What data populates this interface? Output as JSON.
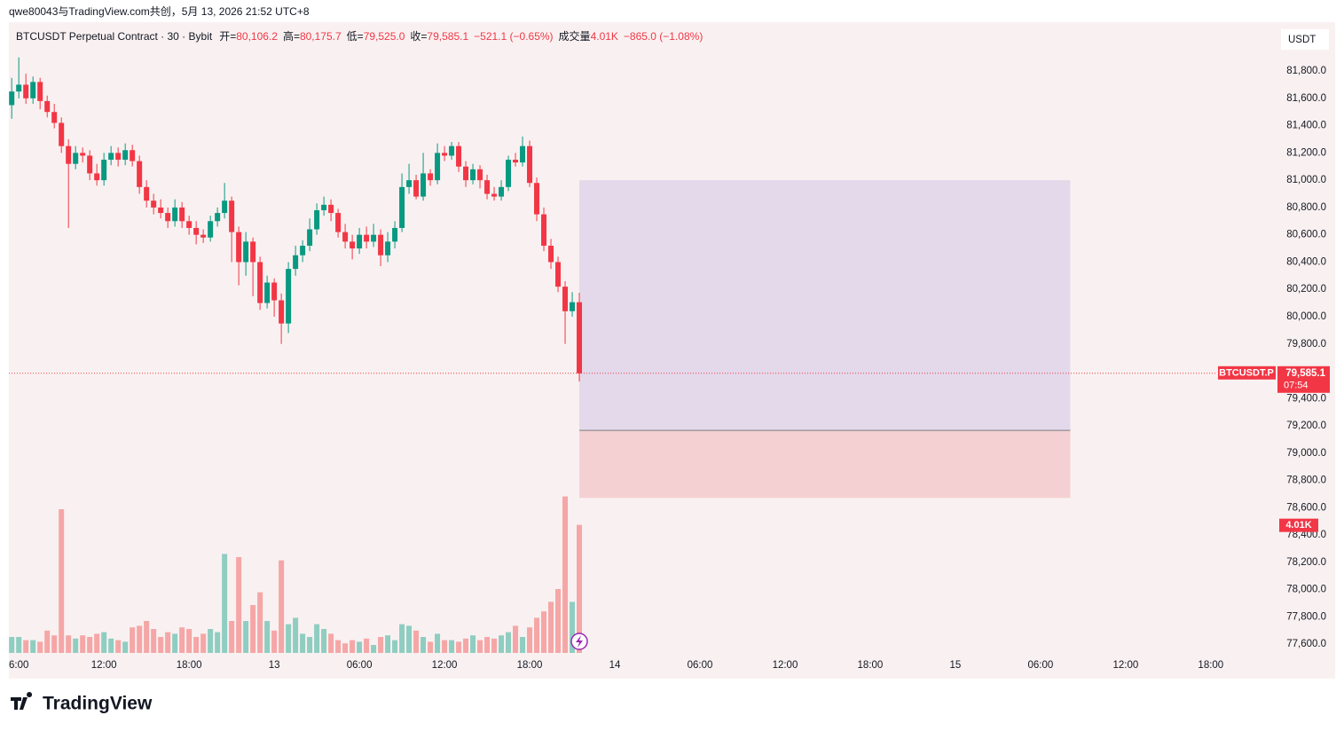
{
  "header": {
    "attribution": "qwe80043与TradingView.com共创，5月 13, 2026 21:52 UTC+8",
    "symbol": "BTCUSDT Perpetual Contract · 30 · Bybit",
    "open_label": "开=",
    "open": "80,106.2",
    "high_label": "高=",
    "high": "80,175.7",
    "low_label": "低=",
    "low": "79,525.0",
    "close_label": "收=",
    "close": "79,585.1",
    "change": "−521.1 (−0.65%)",
    "volume_label": "成交量",
    "volume": "4.01K",
    "volume_change": "−865.0 (−1.08%)"
  },
  "footer": {
    "brand": "TradingView"
  },
  "chart_data": {
    "type": "candlestick",
    "currency": "USDT",
    "up_color": "#089981",
    "down_color": "#f23645",
    "up_volume_color": "#8fcdc1",
    "down_volume_color": "#f5a6a6",
    "xlim": [
      5.3,
      94.7
    ],
    "xticks": [
      {
        "value": 6,
        "label": "6:00"
      },
      {
        "value": 12,
        "label": "12:00"
      },
      {
        "value": 18,
        "label": "18:00"
      },
      {
        "value": 24,
        "label": "13"
      },
      {
        "value": 30,
        "label": "06:00"
      },
      {
        "value": 36,
        "label": "12:00"
      },
      {
        "value": 42,
        "label": "18:00"
      },
      {
        "value": 48,
        "label": "14"
      },
      {
        "value": 54,
        "label": "06:00"
      },
      {
        "value": 60,
        "label": "12:00"
      },
      {
        "value": 66,
        "label": "18:00"
      },
      {
        "value": 72,
        "label": "15"
      },
      {
        "value": 78,
        "label": "06:00"
      },
      {
        "value": 84,
        "label": "12:00"
      },
      {
        "value": 90,
        "label": "18:00"
      }
    ],
    "ylim": [
      77510,
      82158
    ],
    "yticks": [
      {
        "value": 81800,
        "label": "81,800.0"
      },
      {
        "value": 81600,
        "label": "81,600.0"
      },
      {
        "value": 81400,
        "label": "81,400.0"
      },
      {
        "value": 81200,
        "label": "81,200.0"
      },
      {
        "value": 81000,
        "label": "81,000.0"
      },
      {
        "value": 80800,
        "label": "80,800.0"
      },
      {
        "value": 80600,
        "label": "80,600.0"
      },
      {
        "value": 80400,
        "label": "80,400.0"
      },
      {
        "value": 80200,
        "label": "80,200.0"
      },
      {
        "value": 80000,
        "label": "80,000.0"
      },
      {
        "value": 79800,
        "label": "79,800.0"
      },
      {
        "value": 79400,
        "label": "79,400.0"
      },
      {
        "value": 79200,
        "label": "79,200.0"
      },
      {
        "value": 79000,
        "label": "79,000.0"
      },
      {
        "value": 78800,
        "label": "78,800.0"
      },
      {
        "value": 78600,
        "label": "78,600.0"
      },
      {
        "value": 78400,
        "label": "78,400.0"
      },
      {
        "value": 78200,
        "label": "78,200.0"
      },
      {
        "value": 78000,
        "label": "78,000.0"
      },
      {
        "value": 77800,
        "label": "77,800.0"
      },
      {
        "value": 77600,
        "label": "77,600.0"
      }
    ],
    "x": [
      5.5,
      6,
      6.5,
      7,
      7.5,
      8,
      8.5,
      9,
      9.5,
      10,
      10.5,
      11,
      11.5,
      12,
      12.5,
      13,
      13.5,
      14,
      14.5,
      15,
      15.5,
      16,
      16.5,
      17,
      17.5,
      18,
      18.5,
      19,
      19.5,
      20,
      20.5,
      21,
      21.5,
      22,
      22.5,
      23,
      23.5,
      24,
      24.5,
      25,
      25.5,
      26,
      26.5,
      27,
      27.5,
      28,
      28.5,
      29,
      29.5,
      30,
      30.5,
      31,
      31.5,
      32,
      32.5,
      33,
      33.5,
      34,
      34.5,
      35,
      35.5,
      36,
      36.5,
      37,
      37.5,
      38,
      38.5,
      39,
      39.5,
      40,
      40.5,
      41,
      41.5,
      42,
      42.5,
      43,
      43.5,
      44,
      44.5,
      45,
      45.5
    ],
    "candles": [
      [
        81550,
        81750,
        81450,
        81650
      ],
      [
        81650,
        81900,
        81600,
        81700
      ],
      [
        81700,
        81780,
        81560,
        81600
      ],
      [
        81600,
        81760,
        81560,
        81720
      ],
      [
        81720,
        81750,
        81520,
        81580
      ],
      [
        81580,
        81620,
        81460,
        81500
      ],
      [
        81500,
        81560,
        81380,
        81420
      ],
      [
        81420,
        81460,
        81200,
        81250
      ],
      [
        81250,
        81300,
        80650,
        81120
      ],
      [
        81120,
        81250,
        81080,
        81200
      ],
      [
        81200,
        81240,
        81130,
        81180
      ],
      [
        81180,
        81220,
        81000,
        81050
      ],
      [
        81050,
        81120,
        80960,
        81000
      ],
      [
        81000,
        81200,
        80960,
        81150
      ],
      [
        81150,
        81250,
        81110,
        81200
      ],
      [
        81200,
        81240,
        81100,
        81150
      ],
      [
        81150,
        81270,
        81110,
        81220
      ],
      [
        81220,
        81260,
        81100,
        81140
      ],
      [
        81140,
        81180,
        80900,
        80950
      ],
      [
        80950,
        81000,
        80800,
        80850
      ],
      [
        80850,
        80900,
        80750,
        80800
      ],
      [
        80800,
        80860,
        80720,
        80760
      ],
      [
        80760,
        80800,
        80650,
        80700
      ],
      [
        80700,
        80860,
        80660,
        80800
      ],
      [
        80800,
        80840,
        80650,
        80700
      ],
      [
        80700,
        80740,
        80600,
        80650
      ],
      [
        80650,
        80700,
        80530,
        80600
      ],
      [
        80600,
        80640,
        80540,
        80580
      ],
      [
        80580,
        80740,
        80550,
        80700
      ],
      [
        80700,
        80800,
        80660,
        80760
      ],
      [
        80760,
        80980,
        80720,
        80850
      ],
      [
        80850,
        80880,
        80400,
        80620
      ],
      [
        80620,
        80660,
        80230,
        80400
      ],
      [
        80400,
        80620,
        80300,
        80550
      ],
      [
        80550,
        80580,
        80150,
        80400
      ],
      [
        80400,
        80440,
        80050,
        80100
      ],
      [
        80100,
        80300,
        80060,
        80250
      ],
      [
        80250,
        80280,
        80000,
        80120
      ],
      [
        80120,
        80170,
        79800,
        79950
      ],
      [
        79950,
        80400,
        79880,
        80350
      ],
      [
        80350,
        80520,
        80300,
        80450
      ],
      [
        80450,
        80560,
        80400,
        80520
      ],
      [
        80520,
        80720,
        80480,
        80640
      ],
      [
        80640,
        80830,
        80600,
        80780
      ],
      [
        80780,
        80880,
        80740,
        80820
      ],
      [
        80820,
        80860,
        80700,
        80760
      ],
      [
        80760,
        80790,
        80580,
        80620
      ],
      [
        80620,
        80680,
        80500,
        80550
      ],
      [
        80550,
        80600,
        80420,
        80500
      ],
      [
        80500,
        80650,
        80460,
        80600
      ],
      [
        80600,
        80660,
        80500,
        80550
      ],
      [
        80550,
        80680,
        80510,
        80600
      ],
      [
        80600,
        80640,
        80370,
        80450
      ],
      [
        80450,
        80620,
        80400,
        80550
      ],
      [
        80550,
        80700,
        80500,
        80650
      ],
      [
        80650,
        81050,
        80620,
        80950
      ],
      [
        80950,
        81120,
        80900,
        81000
      ],
      [
        81000,
        81040,
        80860,
        80880
      ],
      [
        80880,
        81200,
        80850,
        81050
      ],
      [
        81050,
        81080,
        80960,
        81000
      ],
      [
        81000,
        81270,
        80970,
        81200
      ],
      [
        81200,
        81250,
        81140,
        81180
      ],
      [
        81180,
        81280,
        81150,
        81250
      ],
      [
        81250,
        81280,
        81060,
        81100
      ],
      [
        81100,
        81140,
        80950,
        81000
      ],
      [
        81000,
        81120,
        80970,
        81080
      ],
      [
        81080,
        81110,
        80940,
        81000
      ],
      [
        81000,
        81040,
        80860,
        80900
      ],
      [
        80900,
        80950,
        80850,
        80880
      ],
      [
        80880,
        81000,
        80850,
        80950
      ],
      [
        80950,
        81180,
        80920,
        81150
      ],
      [
        81150,
        81200,
        81100,
        81130
      ],
      [
        81130,
        81320,
        81100,
        81250
      ],
      [
        81250,
        81290,
        80950,
        80980
      ],
      [
        80980,
        81020,
        80700,
        80750
      ],
      [
        80750,
        80800,
        80480,
        80520
      ],
      [
        80520,
        80570,
        80350,
        80400
      ],
      [
        80400,
        80440,
        80180,
        80220
      ],
      [
        80220,
        80260,
        79800,
        80040
      ],
      [
        80040,
        80180,
        80000,
        80106.2
      ],
      [
        80106.2,
        80175.7,
        79525,
        79585.1
      ]
    ],
    "volume_lim": [
      0,
      10
    ],
    "volumes": [
      0.5,
      0.5,
      0.4,
      0.4,
      0.35,
      0.7,
      0.55,
      4.5,
      0.55,
      0.45,
      0.55,
      0.5,
      0.6,
      0.65,
      0.45,
      0.4,
      0.35,
      0.8,
      0.85,
      1.0,
      0.75,
      0.5,
      0.65,
      0.6,
      0.8,
      0.75,
      0.5,
      0.6,
      0.75,
      0.65,
      3.1,
      1.0,
      3.0,
      1.0,
      1.5,
      1.9,
      1.0,
      0.7,
      2.9,
      0.9,
      1.1,
      0.6,
      0.5,
      0.9,
      0.75,
      0.6,
      0.4,
      0.3,
      0.4,
      0.35,
      0.45,
      0.25,
      0.5,
      0.55,
      0.4,
      0.9,
      0.85,
      0.7,
      0.5,
      0.35,
      0.6,
      0.4,
      0.4,
      0.35,
      0.45,
      0.55,
      0.4,
      0.5,
      0.45,
      0.55,
      0.65,
      0.85,
      0.5,
      0.8,
      1.1,
      1.3,
      1.6,
      2.0,
      4.9,
      1.6,
      4.01
    ],
    "last_volume_label": "4.01K",
    "last_price": 79585.1,
    "last_price_label": "79,585.1",
    "symbol_tag": "BTCUSDT.P",
    "countdown": "07:54",
    "position": {
      "x": [
        45.5,
        80.1
      ],
      "target": 81000,
      "entry": 79167,
      "stop": 78672,
      "profit_color": "#e4d9ea",
      "loss_color": "#f5d0d2"
    }
  }
}
